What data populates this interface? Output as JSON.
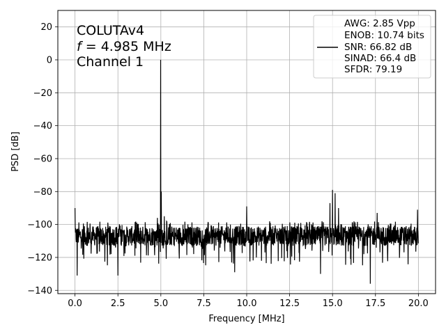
{
  "chart_data": {
    "type": "line",
    "title": "",
    "xlabel": "Frequency [MHz]",
    "ylabel": "PSD [dB]",
    "xlim": [
      -1.0,
      21.0
    ],
    "ylim": [
      -142,
      30
    ],
    "xticks": [
      0.0,
      2.5,
      5.0,
      7.5,
      10.0,
      12.5,
      15.0,
      17.5,
      20.0
    ],
    "xtick_labels": [
      "0.0",
      "2.5",
      "5.0",
      "7.5",
      "10.0",
      "12.5",
      "15.0",
      "17.5",
      "20.0"
    ],
    "yticks": [
      20,
      0,
      -20,
      -40,
      -60,
      -80,
      -100,
      -120,
      -140
    ],
    "ytick_labels": [
      "20",
      "0",
      "−20",
      "−40",
      "−60",
      "−80",
      "−100",
      "−120",
      "−140"
    ],
    "grid": true,
    "legend_position": "top-right",
    "annotation": {
      "line1": "COLUTAv4",
      "line2_var": "f",
      "line2_rest": " = 4.985 MHz",
      "line3": "Channel 1"
    },
    "legend_lines": [
      "AWG: 2.85 Vpp",
      "ENOB: 10.74 bits",
      "SNR: 66.82 dB",
      "SINAD: 66.4 dB",
      "SFDR: 79.19"
    ],
    "series_color": "#000000",
    "noise_floor_db": -107,
    "noise_spread_db": 6,
    "peaks": [
      {
        "x": 0.0,
        "y": -90
      },
      {
        "x": 4.985,
        "y": 0
      },
      {
        "x": 5.03,
        "y": -80
      },
      {
        "x": 5.2,
        "y": -95
      },
      {
        "x": 4.8,
        "y": -96
      },
      {
        "x": 10.0,
        "y": -89
      },
      {
        "x": 14.85,
        "y": -87
      },
      {
        "x": 15.0,
        "y": -79
      },
      {
        "x": 15.15,
        "y": -81
      },
      {
        "x": 15.35,
        "y": -90
      },
      {
        "x": 17.6,
        "y": -93
      },
      {
        "x": 19.95,
        "y": -91
      }
    ],
    "dips": [
      {
        "x": 0.12,
        "y": -131
      },
      {
        "x": 2.5,
        "y": -131
      },
      {
        "x": 9.3,
        "y": -129
      },
      {
        "x": 14.3,
        "y": -130
      },
      {
        "x": 17.2,
        "y": -136
      }
    ]
  }
}
